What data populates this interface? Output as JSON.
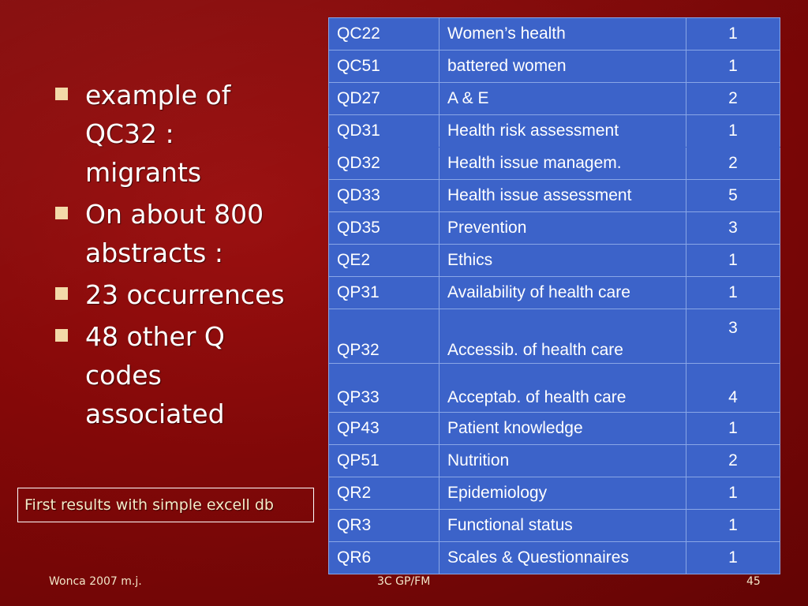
{
  "bullets": [
    "example of\nQC32  :\nmigrants",
    "On about 800\nabstracts :",
    "23 occurrences",
    "48 other Q\ncodes\nassociated"
  ],
  "note": "First results with simple excell db",
  "table": {
    "rows": [
      {
        "code": "QC22",
        "description": "Women’s health",
        "count": "1"
      },
      {
        "code": "QC51",
        "description": "battered women",
        "count": "1"
      },
      {
        "code": "QD27",
        "description": "A & E",
        "count": "2"
      },
      {
        "code": "QD31",
        "description": "Health risk assessment",
        "count": "1"
      },
      {
        "code": "QD32",
        "description": "Health issue managem.",
        "count": "2"
      },
      {
        "code": "QD33",
        "description": "Health issue assessment",
        "count": "5"
      },
      {
        "code": "QD35",
        "description": "Prevention",
        "count": "3"
      },
      {
        "code": "QE2",
        "description": "Ethics",
        "count": "1"
      },
      {
        "code": "QP31",
        "description": "Availability of health care",
        "count": "1"
      },
      {
        "code": "QP32",
        "description": "Accessib. of health care",
        "count": "3"
      },
      {
        "code": "QP33",
        "description": "Acceptab. of health care",
        "count": "4"
      },
      {
        "code": "QP43",
        "description": "Patient knowledge",
        "count": "1"
      },
      {
        "code": "QP51",
        "description": "Nutrition",
        "count": "2"
      },
      {
        "code": "QR2",
        "description": "Epidemiology",
        "count": "1"
      },
      {
        "code": "QR3",
        "description": "Functional status",
        "count": "1"
      },
      {
        "code": "QR6",
        "description": "Scales & Questionnaires",
        "count": "1"
      }
    ]
  },
  "footer": {
    "left": "Wonca 2007  m.j.",
    "center": "3C GP/FM",
    "right": "45"
  }
}
